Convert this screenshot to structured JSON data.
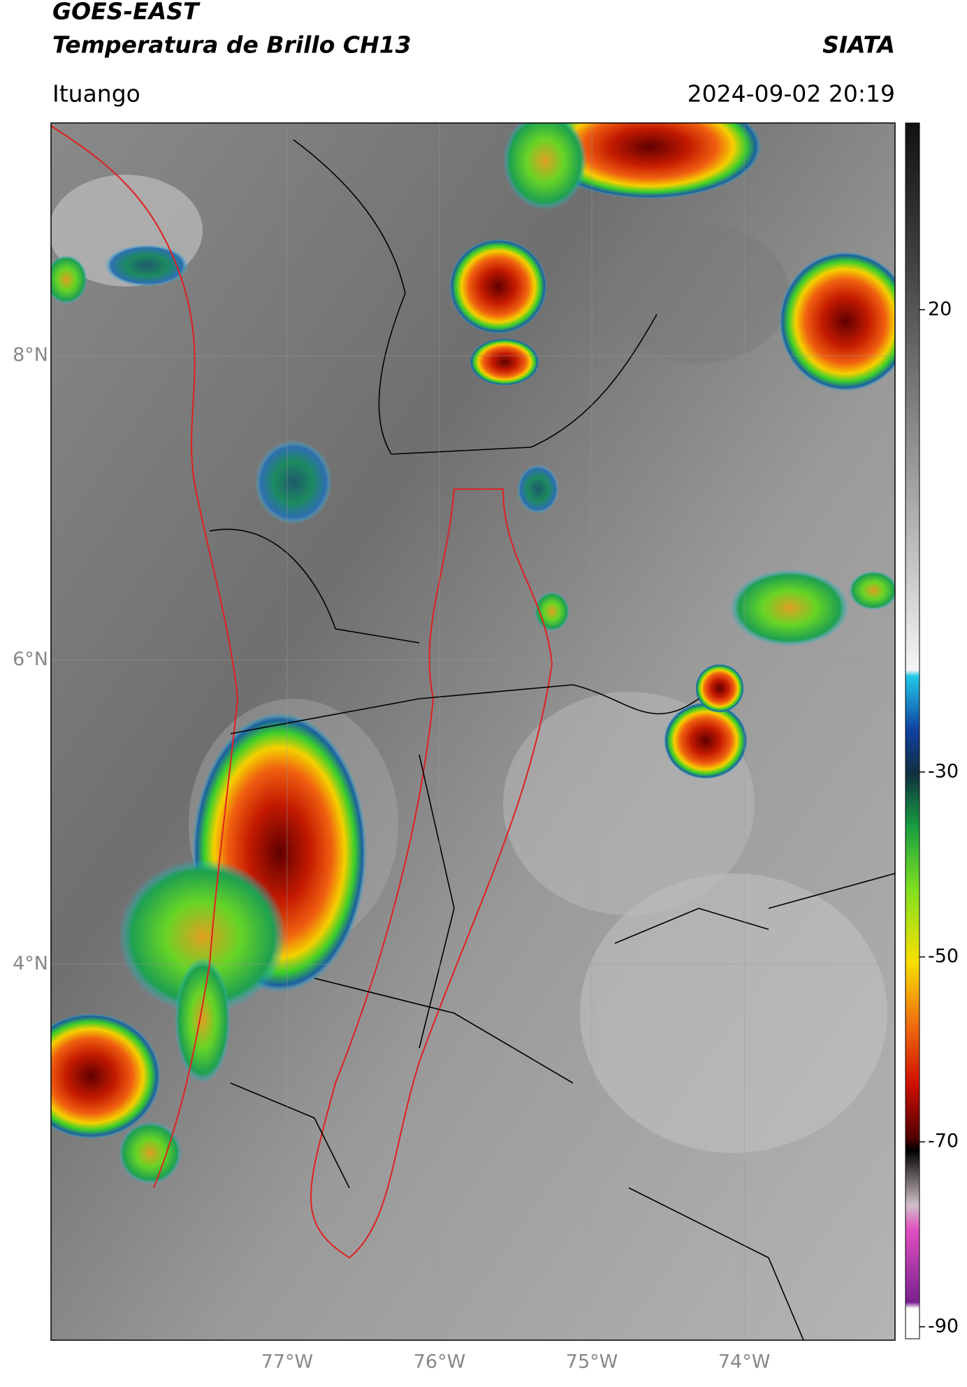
{
  "header": {
    "title": "GOES-EAST",
    "subtitle": "Temperatura de Brillo CH13",
    "agency": "SIATA",
    "location": "Ituango",
    "datetime": "2024-09-02 20:19"
  },
  "map": {
    "xlim": [
      -78.55,
      -73.01
    ],
    "ylim": [
      1.53,
      9.53
    ],
    "xticks": [
      {
        "value": -77,
        "label": "77°W"
      },
      {
        "value": -76,
        "label": "76°W"
      },
      {
        "value": -75,
        "label": "75°W"
      },
      {
        "value": -74,
        "label": "74°W"
      }
    ],
    "yticks": [
      {
        "value": 8,
        "label": "8°N"
      },
      {
        "value": 6,
        "label": "6°N"
      },
      {
        "value": 4,
        "label": "4°N"
      }
    ]
  },
  "colorbar": {
    "clim": [
      -91.3,
      40.2
    ],
    "ticks": [
      20,
      -30,
      -50,
      -70,
      -90
    ]
  }
}
